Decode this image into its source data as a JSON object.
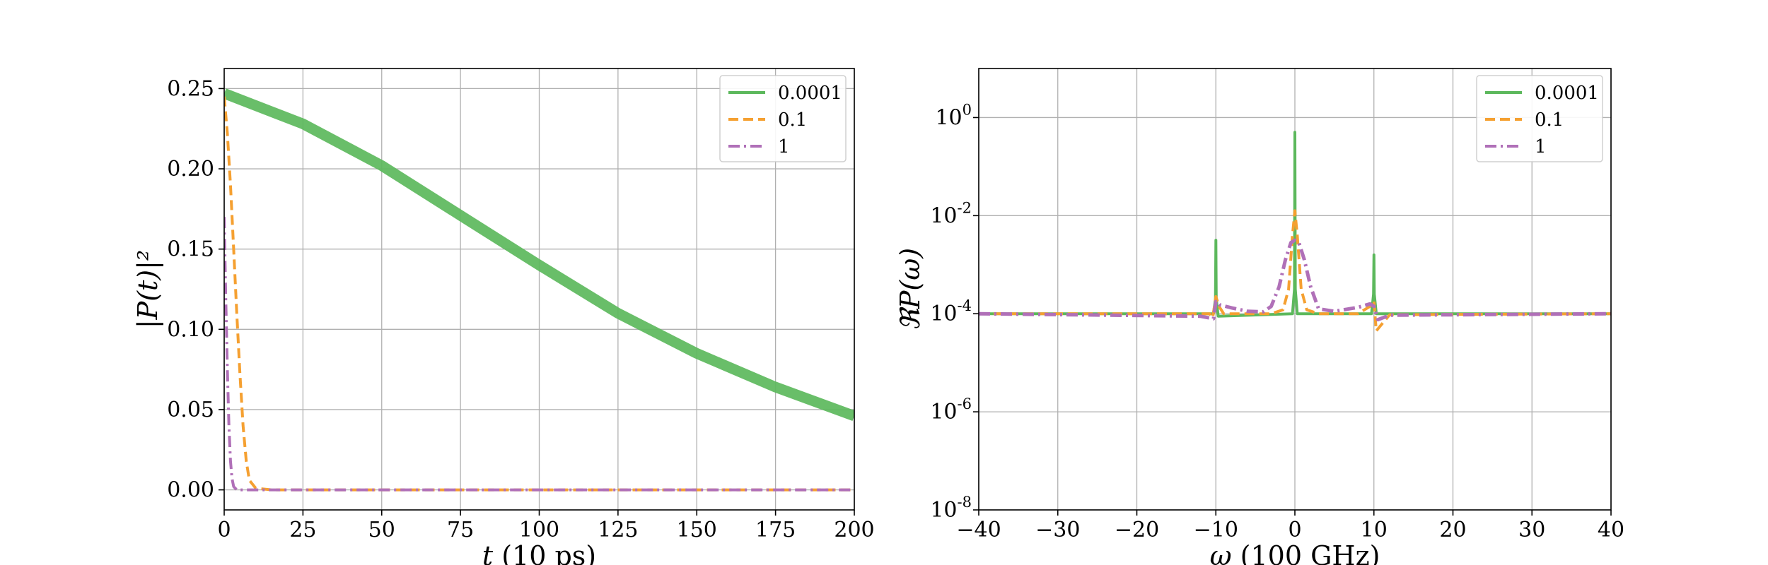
{
  "chart_data": [
    {
      "type": "line",
      "title": "",
      "xlabel": "t (10 ps)",
      "ylabel": "|P(t)|²",
      "xlim": [
        0,
        200
      ],
      "ylim": [
        -0.0125,
        0.2625
      ],
      "xticks": [
        0,
        25,
        50,
        75,
        100,
        125,
        150,
        175,
        200
      ],
      "xtick_labels": [
        "0",
        "25",
        "50",
        "75",
        "100",
        "125",
        "150",
        "175",
        "200"
      ],
      "yticks": [
        0.0,
        0.05,
        0.1,
        0.15,
        0.2,
        0.25
      ],
      "ytick_labels": [
        "0.00",
        "0.05",
        "0.10",
        "0.15",
        "0.20",
        "0.25"
      ],
      "grid": true,
      "legend_position": "top-right",
      "series": [
        {
          "name": "0.0001",
          "color": "#5cb85c",
          "style": "solid",
          "x": [
            0,
            25,
            50,
            75,
            100,
            125,
            150,
            175,
            200
          ],
          "y": [
            0.247,
            0.228,
            0.202,
            0.171,
            0.14,
            0.11,
            0.085,
            0.064,
            0.046
          ]
        },
        {
          "name": "0.1",
          "color": "#f5a031",
          "style": "dashed",
          "x": [
            0,
            1,
            2,
            3,
            4,
            5,
            6,
            7,
            8,
            10,
            15,
            200
          ],
          "y": [
            0.245,
            0.222,
            0.19,
            0.15,
            0.11,
            0.072,
            0.04,
            0.018,
            0.006,
            0.001,
            0.0,
            0.0
          ]
        },
        {
          "name": "1",
          "color": "#b070b8",
          "style": "dashdot",
          "x": [
            0,
            0.5,
            1,
            1.5,
            2,
            2.5,
            3,
            4,
            200
          ],
          "y": [
            0.17,
            0.12,
            0.075,
            0.04,
            0.018,
            0.007,
            0.002,
            0.0,
            0.0
          ]
        }
      ]
    },
    {
      "type": "line",
      "title": "",
      "xlabel": "ω (100 GHz)",
      "ylabel": "ℜP(ω)",
      "xlim": [
        -40,
        40
      ],
      "ylim": [
        -8,
        1
      ],
      "yscale": "log",
      "xticks": [
        -40,
        -30,
        -20,
        -10,
        0,
        10,
        20,
        30,
        40
      ],
      "xtick_labels": [
        "−40",
        "−30",
        "−20",
        "−10",
        "0",
        "10",
        "20",
        "30",
        "40"
      ],
      "yticks": [
        -8,
        -6,
        -4,
        -2,
        0
      ],
      "ytick_labels": [
        "10",
        "10",
        "10",
        "10",
        "10"
      ],
      "ytick_exponents": [
        "-8",
        "-6",
        "-4",
        "-2",
        "0"
      ],
      "grid": true,
      "legend_position": "top-right",
      "series": [
        {
          "name": "0.0001",
          "color": "#5cb85c",
          "style": "solid",
          "x": [
            -40,
            -10.3,
            -10.05,
            -10,
            -9.95,
            -9.7,
            -0.3,
            -0.05,
            0,
            0.05,
            0.3,
            9.7,
            9.95,
            10,
            10.05,
            10.3,
            40
          ],
          "logy": [
            -4,
            -4,
            -3.7,
            -2.5,
            -3.7,
            -4.05,
            -4.0,
            -3.5,
            -0.3,
            -3.5,
            -4.0,
            -4.0,
            -3.6,
            -2.8,
            -3.6,
            -4.0,
            -4
          ]
        },
        {
          "name": "0.1",
          "color": "#f5a031",
          "style": "dashed",
          "x": [
            -40,
            -10.8,
            -10.4,
            -10,
            -9.6,
            -9.0,
            -8,
            -3,
            -1.5,
            -0.8,
            -0.3,
            0,
            0.3,
            0.8,
            1.5,
            3,
            8,
            9.5,
            10,
            10.3,
            10.8,
            12,
            40
          ],
          "logy": [
            -4,
            -4.0,
            -4.08,
            -3.65,
            -3.85,
            -4.0,
            -4.0,
            -4.0,
            -3.92,
            -3.5,
            -2.4,
            -1.9,
            -2.4,
            -3.5,
            -3.92,
            -4.0,
            -4.0,
            -3.85,
            -3.75,
            -4.35,
            -4.25,
            -4.02,
            -4
          ]
        },
        {
          "name": "1",
          "color": "#b070b8",
          "style": "dashdot",
          "x": [
            -40,
            -12,
            -11,
            -10.3,
            -10,
            -9.5,
            -8,
            -6,
            -4,
            -3,
            -2,
            -1.2,
            -0.5,
            0,
            0.5,
            1.2,
            2,
            3,
            5,
            8,
            9.5,
            10,
            10.5,
            12,
            40
          ],
          "logy": [
            -4,
            -4.05,
            -4.08,
            -4.1,
            -3.75,
            -3.82,
            -3.88,
            -3.95,
            -3.96,
            -3.85,
            -3.45,
            -2.9,
            -2.55,
            -2.5,
            -2.55,
            -2.9,
            -3.45,
            -3.9,
            -3.95,
            -3.87,
            -3.8,
            -3.85,
            -4.12,
            -4.03,
            -4
          ]
        }
      ]
    }
  ]
}
